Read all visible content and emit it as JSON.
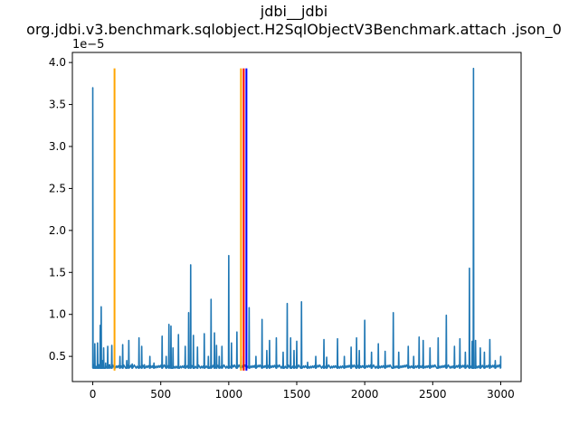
{
  "chart_data": {
    "type": "line",
    "title": "jdbi__jdbi",
    "subtitle": "org.jdbi.v3.benchmark.sqlobject.H2SqlObjectV3Benchmark.attach .json_0",
    "xlabel": "",
    "ylabel": "",
    "y_scale_label": "1e−5",
    "xlim": [
      -150,
      3150
    ],
    "ylim": [
      0.2,
      4.12
    ],
    "x_ticks": [
      0,
      500,
      1000,
      1500,
      2000,
      2500,
      3000
    ],
    "x_tick_labels": [
      "0",
      "500",
      "1000",
      "1500",
      "2000",
      "2500",
      "3000"
    ],
    "y_ticks": [
      0.5,
      1.0,
      1.5,
      2.0,
      2.5,
      3.0,
      3.5,
      4.0
    ],
    "y_tick_labels": [
      "0.5",
      "1.0",
      "1.5",
      "2.0",
      "2.5",
      "3.0",
      "3.5",
      "4.0"
    ],
    "grid": false,
    "legend": "none",
    "series": [
      {
        "color": "#1f77b4",
        "baseline": 0.36,
        "x_range": [
          0,
          3000
        ],
        "points": [
          [
            0,
            3.7
          ],
          [
            8,
            0.4
          ],
          [
            15,
            0.65
          ],
          [
            25,
            0.38
          ],
          [
            35,
            0.66
          ],
          [
            45,
            0.4
          ],
          [
            55,
            0.87
          ],
          [
            62,
            1.09
          ],
          [
            70,
            0.45
          ],
          [
            80,
            0.6
          ],
          [
            95,
            0.42
          ],
          [
            110,
            0.62
          ],
          [
            125,
            0.4
          ],
          [
            140,
            0.63
          ],
          [
            160,
            0.42
          ],
          [
            200,
            0.5
          ],
          [
            220,
            0.64
          ],
          [
            250,
            0.45
          ],
          [
            265,
            0.69
          ],
          [
            290,
            0.41
          ],
          [
            340,
            0.72
          ],
          [
            360,
            0.62
          ],
          [
            380,
            0.4
          ],
          [
            420,
            0.5
          ],
          [
            450,
            0.42
          ],
          [
            510,
            0.74
          ],
          [
            540,
            0.5
          ],
          [
            560,
            0.88
          ],
          [
            575,
            0.86
          ],
          [
            590,
            0.6
          ],
          [
            630,
            0.76
          ],
          [
            680,
            0.62
          ],
          [
            705,
            1.02
          ],
          [
            720,
            1.59
          ],
          [
            740,
            0.75
          ],
          [
            770,
            0.61
          ],
          [
            820,
            0.77
          ],
          [
            850,
            0.5
          ],
          [
            870,
            1.18
          ],
          [
            895,
            0.78
          ],
          [
            910,
            0.63
          ],
          [
            930,
            0.5
          ],
          [
            950,
            0.62
          ],
          [
            1000,
            1.7
          ],
          [
            1020,
            0.66
          ],
          [
            1060,
            0.79
          ],
          [
            1090,
            0.5
          ],
          [
            1150,
            1.08
          ],
          [
            1200,
            0.5
          ],
          [
            1245,
            0.94
          ],
          [
            1280,
            0.57
          ],
          [
            1300,
            0.69
          ],
          [
            1350,
            0.72
          ],
          [
            1400,
            0.55
          ],
          [
            1430,
            1.13
          ],
          [
            1455,
            0.72
          ],
          [
            1480,
            0.57
          ],
          [
            1500,
            0.68
          ],
          [
            1535,
            1.15
          ],
          [
            1580,
            0.43
          ],
          [
            1640,
            0.5
          ],
          [
            1700,
            0.7
          ],
          [
            1720,
            0.49
          ],
          [
            1800,
            0.71
          ],
          [
            1850,
            0.5
          ],
          [
            1900,
            0.61
          ],
          [
            1940,
            0.72
          ],
          [
            1960,
            0.57
          ],
          [
            2000,
            0.93
          ],
          [
            2050,
            0.55
          ],
          [
            2100,
            0.65
          ],
          [
            2150,
            0.56
          ],
          [
            2210,
            1.02
          ],
          [
            2250,
            0.55
          ],
          [
            2320,
            0.62
          ],
          [
            2360,
            0.5
          ],
          [
            2400,
            0.73
          ],
          [
            2430,
            0.69
          ],
          [
            2480,
            0.6
          ],
          [
            2540,
            0.72
          ],
          [
            2600,
            0.99
          ],
          [
            2660,
            0.62
          ],
          [
            2700,
            0.71
          ],
          [
            2740,
            0.55
          ],
          [
            2770,
            1.55
          ],
          [
            2790,
            0.68
          ],
          [
            2800,
            3.93
          ],
          [
            2815,
            0.69
          ],
          [
            2850,
            0.6
          ],
          [
            2880,
            0.55
          ],
          [
            2920,
            0.7
          ],
          [
            2960,
            0.45
          ],
          [
            3000,
            0.5
          ]
        ]
      }
    ],
    "markers": [
      {
        "x": 160,
        "color": "#ffa500"
      },
      {
        "x": 1090,
        "color": "#ffa500"
      },
      {
        "x": 1110,
        "color": "#ff0000"
      },
      {
        "x": 1130,
        "color": "#0000ff"
      }
    ],
    "marker_range": [
      0.33,
      3.93
    ]
  }
}
